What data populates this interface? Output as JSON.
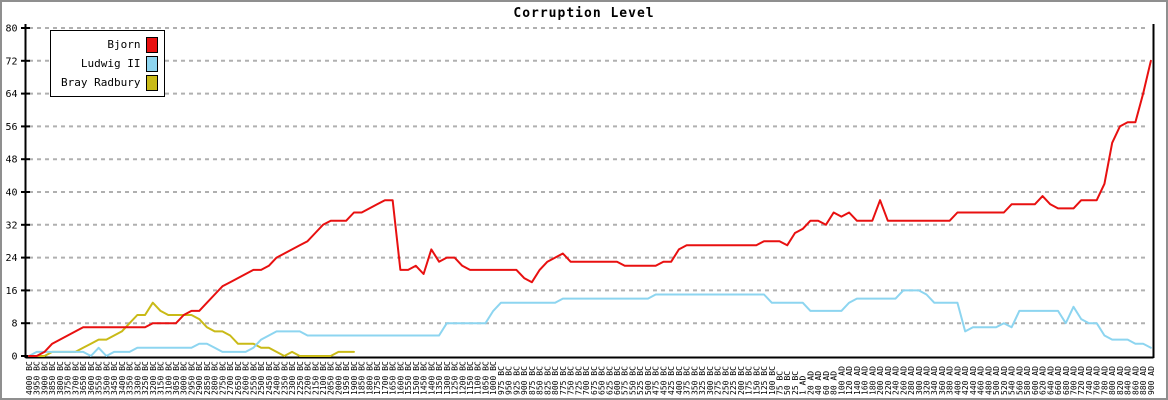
{
  "title": "Corruption Level",
  "chart_data": {
    "type": "line",
    "title": "Corruption Level",
    "grid": "horizontal-dashed",
    "grid_color": "#b0b0b0",
    "axis_color": "#000000",
    "legend_position": "top-left",
    "ylim": [
      0,
      80
    ],
    "y_ticks": [
      0,
      8,
      16,
      24,
      32,
      40,
      48,
      56,
      64,
      72,
      80
    ],
    "x_labels": [
      "4000 BC",
      "3950 BC",
      "3900 BC",
      "3850 BC",
      "3800 BC",
      "3750 BC",
      "3700 BC",
      "3650 BC",
      "3600 BC",
      "3550 BC",
      "3500 BC",
      "3450 BC",
      "3400 BC",
      "3350 BC",
      "3300 BC",
      "3250 BC",
      "3200 BC",
      "3150 BC",
      "3100 BC",
      "3050 BC",
      "3000 BC",
      "2950 BC",
      "2900 BC",
      "2850 BC",
      "2800 BC",
      "2750 BC",
      "2700 BC",
      "2650 BC",
      "2600 BC",
      "2550 BC",
      "2500 BC",
      "2450 BC",
      "2400 BC",
      "2350 BC",
      "2300 BC",
      "2250 BC",
      "2200 BC",
      "2150 BC",
      "2100 BC",
      "2050 BC",
      "2000 BC",
      "1950 BC",
      "1900 BC",
      "1850 BC",
      "1800 BC",
      "1750 BC",
      "1700 BC",
      "1650 BC",
      "1600 BC",
      "1550 BC",
      "1500 BC",
      "1450 BC",
      "1400 BC",
      "1350 BC",
      "1300 BC",
      "1250 BC",
      "1200 BC",
      "1150 BC",
      "1100 BC",
      "1050 BC",
      "1000 BC",
      "975 BC",
      "950 BC",
      "925 BC",
      "900 BC",
      "875 BC",
      "850 BC",
      "825 BC",
      "800 BC",
      "775 BC",
      "750 BC",
      "725 BC",
      "700 BC",
      "675 BC",
      "650 BC",
      "625 BC",
      "600 BC",
      "575 BC",
      "550 BC",
      "525 BC",
      "500 BC",
      "475 BC",
      "450 BC",
      "425 BC",
      "400 BC",
      "375 BC",
      "350 BC",
      "325 BC",
      "300 BC",
      "275 BC",
      "250 BC",
      "225 BC",
      "200 BC",
      "175 BC",
      "150 BC",
      "125 BC",
      "100 BC",
      "75 BC",
      "50 BC",
      "25 BC",
      "1 AD",
      "20 AD",
      "40 AD",
      "60 AD",
      "80 AD",
      "100 AD",
      "120 AD",
      "140 AD",
      "160 AD",
      "180 AD",
      "200 AD",
      "220 AD",
      "240 AD",
      "260 AD",
      "280 AD",
      "300 AD",
      "320 AD",
      "340 AD",
      "360 AD",
      "380 AD",
      "400 AD",
      "420 AD",
      "440 AD",
      "460 AD",
      "480 AD",
      "500 AD",
      "520 AD",
      "540 AD",
      "560 AD",
      "580 AD",
      "600 AD",
      "620 AD",
      "640 AD",
      "660 AD",
      "680 AD",
      "700 AD",
      "720 AD",
      "740 AD",
      "760 AD",
      "780 AD",
      "800 AD",
      "820 AD",
      "840 AD",
      "860 AD",
      "880 AD",
      "900 AD"
    ],
    "series": [
      {
        "name": "Bjorn",
        "color": "#e81010",
        "values": [
          0,
          0,
          1,
          3,
          4,
          5,
          6,
          7,
          7,
          7,
          7,
          7,
          7,
          7,
          7,
          7,
          8,
          8,
          8,
          8,
          10,
          11,
          11,
          13,
          15,
          17,
          18,
          19,
          20,
          21,
          21,
          22,
          24,
          25,
          26,
          27,
          28,
          30,
          32,
          33,
          33,
          33,
          35,
          35,
          36,
          37,
          38,
          38,
          21,
          21,
          22,
          20,
          26,
          23,
          24,
          24,
          22,
          21,
          21,
          21,
          21,
          21,
          21,
          21,
          19,
          18,
          21,
          23,
          24,
          25,
          23,
          23,
          23,
          23,
          23,
          23,
          23,
          22,
          22,
          22,
          22,
          22,
          23,
          23,
          26,
          27,
          27,
          27,
          27,
          27,
          27,
          27,
          27,
          27,
          27,
          28,
          28,
          28,
          27,
          30,
          31,
          33,
          33,
          32,
          35,
          34,
          35,
          33,
          33,
          33,
          38,
          33,
          33,
          33,
          33,
          33,
          33,
          33,
          33,
          33,
          35,
          35,
          35,
          35,
          35,
          35,
          35,
          37,
          37,
          37,
          37,
          39,
          37,
          36,
          36,
          36,
          38,
          38,
          38,
          42,
          52,
          56,
          57,
          57,
          64,
          72
        ]
      },
      {
        "name": "Ludwig II",
        "color": "#8dd5f0",
        "values": [
          0,
          1,
          1,
          1,
          1,
          1,
          1,
          1,
          0,
          2,
          0,
          1,
          1,
          1,
          2,
          2,
          2,
          2,
          2,
          2,
          2,
          2,
          3,
          3,
          2,
          1,
          1,
          1,
          1,
          2,
          4,
          5,
          6,
          6,
          6,
          6,
          5,
          5,
          5,
          5,
          5,
          5,
          5,
          5,
          5,
          5,
          5,
          5,
          5,
          5,
          5,
          5,
          5,
          5,
          8,
          8,
          8,
          8,
          8,
          8,
          11,
          13,
          13,
          13,
          13,
          13,
          13,
          13,
          13,
          14,
          14,
          14,
          14,
          14,
          14,
          14,
          14,
          14,
          14,
          14,
          14,
          15,
          15,
          15,
          15,
          15,
          15,
          15,
          15,
          15,
          15,
          15,
          15,
          15,
          15,
          15,
          13,
          13,
          13,
          13,
          13,
          11,
          11,
          11,
          11,
          11,
          13,
          14,
          14,
          14,
          14,
          14,
          14,
          16,
          16,
          16,
          15,
          13,
          13,
          13,
          13,
          6,
          7,
          7,
          7,
          7,
          8,
          7,
          11,
          11,
          11,
          11,
          11,
          11,
          8,
          12,
          9,
          8,
          8,
          5,
          4,
          4,
          4,
          3,
          3,
          2
        ]
      },
      {
        "name": "Bray Radbury",
        "color": "#c9ba17",
        "values": [
          0,
          0,
          0,
          1,
          1,
          1,
          1,
          2,
          3,
          4,
          4,
          5,
          6,
          8,
          10,
          10,
          13,
          11,
          10,
          10,
          10,
          10,
          9,
          7,
          6,
          6,
          5,
          3,
          3,
          3,
          2,
          2,
          1,
          0,
          1,
          0,
          0,
          0,
          0,
          0,
          1,
          1,
          1
        ]
      }
    ]
  }
}
